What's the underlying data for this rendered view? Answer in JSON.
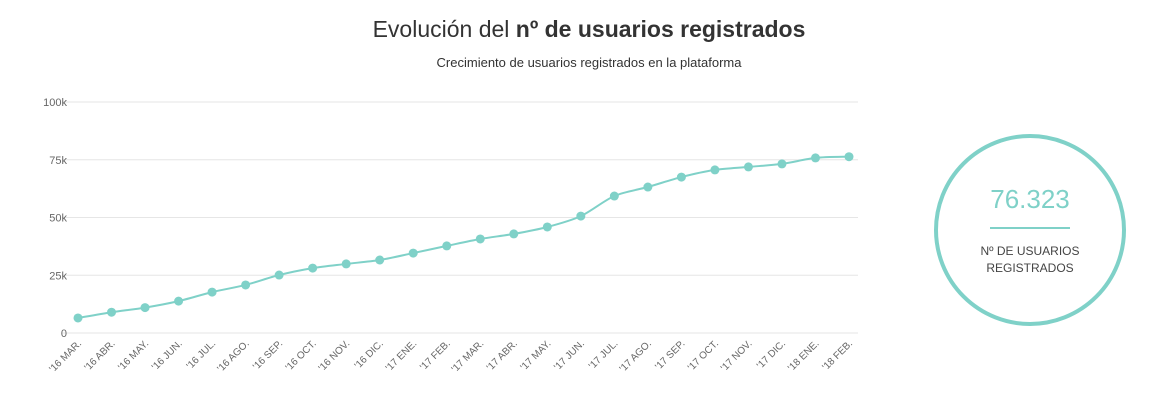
{
  "chart_data": {
    "type": "line",
    "title_normal": "Evolución del ",
    "title_bold": "nº de usuarios registrados",
    "subtitle": "Crecimiento de usuarios registrados en la plataforma",
    "xlabel": "",
    "ylabel": "",
    "ylim": [
      0,
      100000
    ],
    "yticks": [
      0,
      25000,
      50000,
      75000,
      100000
    ],
    "ytick_labels": [
      "0",
      "25k",
      "50k",
      "75k",
      "100k"
    ],
    "grid": true,
    "color": "#7fd1c8",
    "categories": [
      "'16 MAR.",
      "'16 ABR.",
      "'16 MAY.",
      "'16 JUN.",
      "'16 JUL.",
      "'16 AGO.",
      "'16 SEP.",
      "'16 OCT.",
      "'16 NOV.",
      "'16 DIC.",
      "'17 ENE.",
      "'17 FEB.",
      "'17 MAR.",
      "'17 ABR.",
      "'17 MAY.",
      "'17 JUN.",
      "'17 JUL.",
      "'17 AGO.",
      "'17 SEP.",
      "'17 OCT.",
      "'17 NOV.",
      "'17 DIC.",
      "'18 ENE.",
      "'18 FEB."
    ],
    "series": [
      {
        "name": "Usuarios registrados",
        "values": [
          6500,
          9000,
          11000,
          13800,
          17700,
          20800,
          25100,
          28100,
          29900,
          31600,
          34600,
          37700,
          40700,
          42900,
          45900,
          50600,
          59300,
          63200,
          67500,
          70600,
          71900,
          73200,
          75800,
          76323
        ]
      }
    ]
  },
  "kpi": {
    "value": "76.323",
    "label": "Nº DE USUARIOS REGISTRADOS"
  }
}
